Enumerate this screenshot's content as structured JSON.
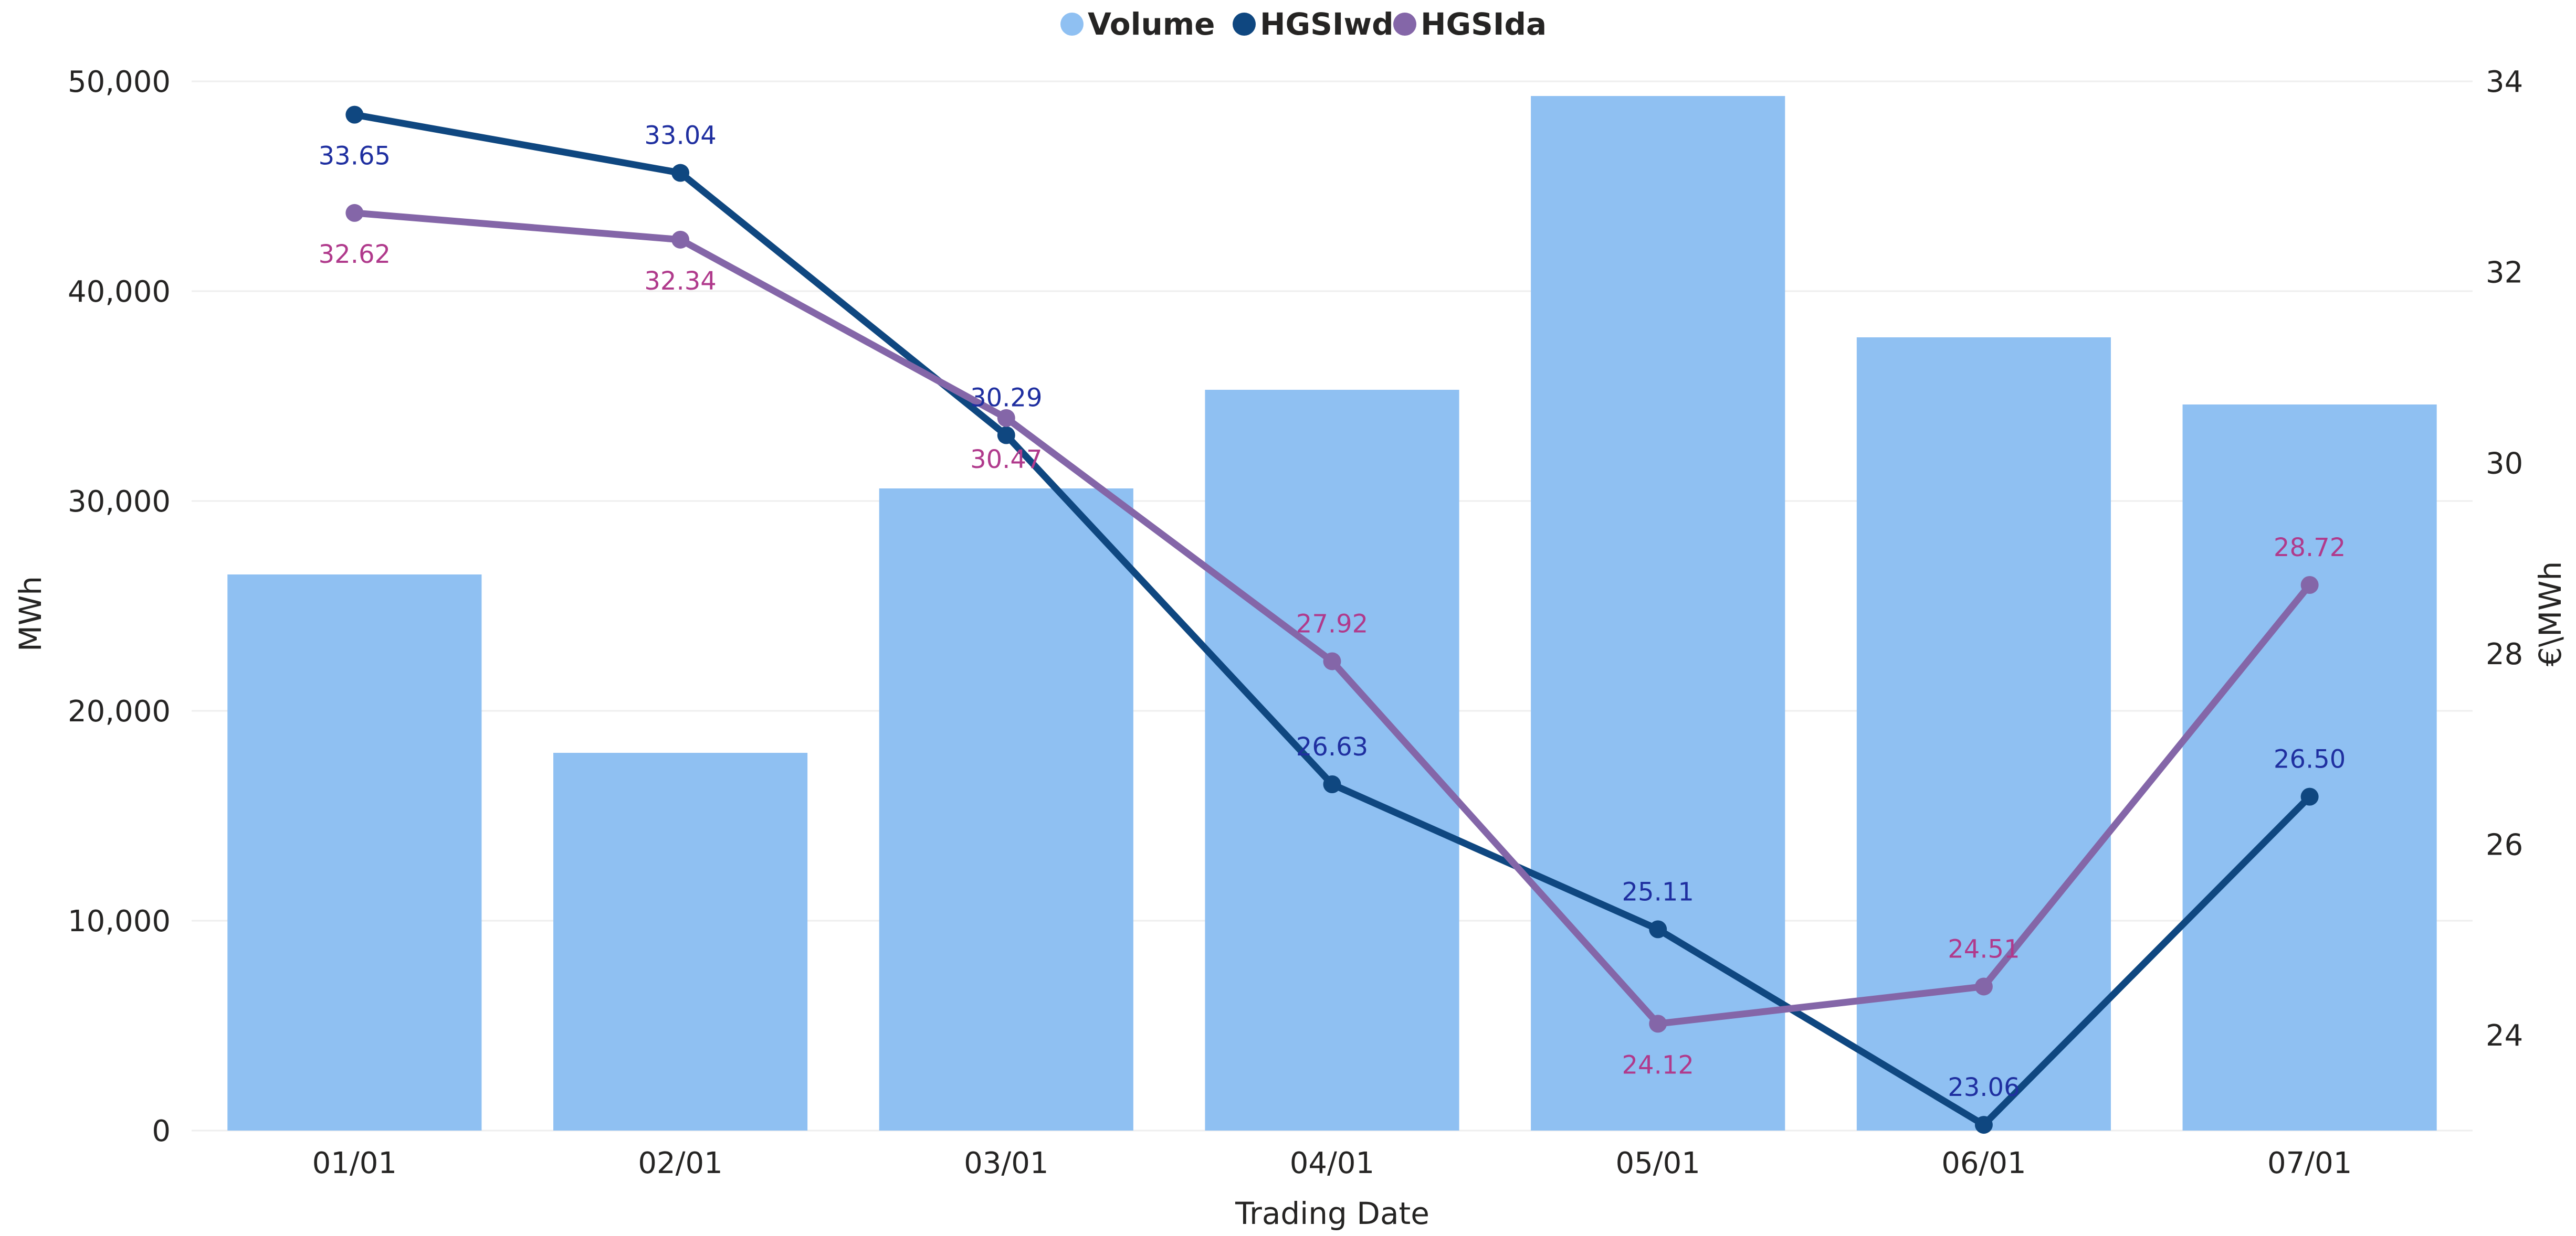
{
  "chart_data": {
    "type": "bar",
    "categories": [
      "01/01",
      "02/01",
      "03/01",
      "04/01",
      "05/01",
      "06/01",
      "07/01"
    ],
    "xlabel": "Trading Date",
    "ylabel": "MWh",
    "y2label": "€\\MWh",
    "ylim": [
      0,
      50000
    ],
    "y2lim": [
      23,
      34
    ],
    "yticks": [
      "0",
      "10,000",
      "20,000",
      "30,000",
      "40,000",
      "50,000"
    ],
    "y2ticks": [
      "24",
      "26",
      "28",
      "30",
      "32",
      "34"
    ],
    "legend_position": "top-center",
    "bars": {
      "name": "Volume",
      "color": "#8fc0f2",
      "values": [
        26500,
        18000,
        30600,
        35300,
        49300,
        37800,
        34600
      ]
    },
    "lines": [
      {
        "name": "HGSIwd",
        "color": "#0f4780",
        "label_color": "#1f2fa0",
        "values": [
          33.65,
          33.04,
          30.29,
          26.63,
          25.11,
          23.06,
          26.5
        ],
        "labels": [
          "33.65",
          "33.04",
          "30.29",
          "26.63",
          "25.11",
          "23.06",
          "26.50"
        ]
      },
      {
        "name": "HGSIda",
        "color": "#8466a8",
        "label_color": "#b03a8c",
        "values": [
          32.62,
          32.34,
          30.47,
          27.92,
          24.12,
          24.51,
          28.72
        ],
        "labels": [
          "32.62",
          "32.34",
          "30.47",
          "27.92",
          "24.12",
          "24.51",
          "28.72"
        ]
      }
    ],
    "grid": true
  }
}
